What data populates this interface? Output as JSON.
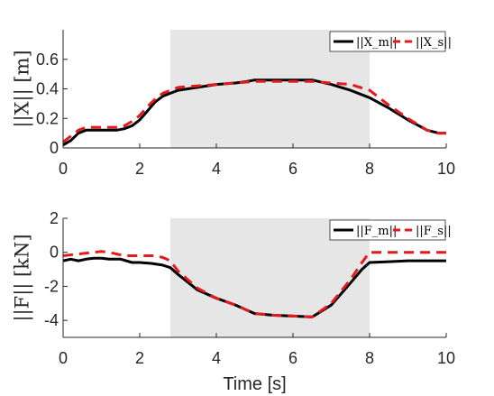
{
  "colors": {
    "master": "#000000",
    "slave": "#e41a1c",
    "shade": "#e6e6e6",
    "axis": "#262626"
  },
  "chart_data": [
    {
      "type": "line",
      "ylabel": "||X|| [m]",
      "xlabel": "",
      "xlim": [
        0,
        10
      ],
      "ylim": [
        0,
        0.8
      ],
      "xticks": [
        "0",
        "2",
        "4",
        "6",
        "8",
        "10"
      ],
      "yticks": [
        "0",
        "0.2",
        "0.4",
        "0.6"
      ],
      "ytick_values": [
        0,
        0.2,
        0.4,
        0.6
      ],
      "xtick_values": [
        0,
        2,
        4,
        6,
        8,
        10
      ],
      "shaded_interval": [
        2.8,
        8.0
      ],
      "legend": "top-right",
      "series": [
        {
          "name": "||X_m||",
          "style": "solid",
          "x": [
            0,
            0.2,
            0.4,
            0.6,
            0.8,
            1.0,
            1.2,
            1.4,
            1.6,
            1.8,
            2.0,
            2.2,
            2.4,
            2.6,
            2.8,
            3.0,
            3.5,
            4.0,
            4.5,
            4.8,
            5.0,
            5.5,
            6.0,
            6.5,
            7.0,
            7.5,
            8.0,
            8.5,
            9.0,
            9.5,
            9.8,
            10.0
          ],
          "y": [
            0.02,
            0.05,
            0.1,
            0.12,
            0.12,
            0.12,
            0.12,
            0.12,
            0.13,
            0.15,
            0.19,
            0.25,
            0.31,
            0.35,
            0.37,
            0.39,
            0.41,
            0.43,
            0.44,
            0.45,
            0.46,
            0.46,
            0.46,
            0.46,
            0.43,
            0.39,
            0.34,
            0.27,
            0.19,
            0.12,
            0.1,
            0.1
          ]
        },
        {
          "name": "||X_s||",
          "style": "dashed",
          "x": [
            0,
            0.2,
            0.4,
            0.6,
            0.8,
            1.0,
            1.2,
            1.4,
            1.6,
            1.8,
            2.0,
            2.2,
            2.4,
            2.6,
            2.8,
            3.0,
            3.5,
            4.0,
            4.5,
            5.0,
            5.5,
            6.0,
            6.5,
            7.0,
            7.5,
            8.0,
            8.5,
            9.0,
            9.5,
            9.8,
            10.0
          ],
          "y": [
            0.04,
            0.08,
            0.12,
            0.14,
            0.14,
            0.14,
            0.14,
            0.14,
            0.15,
            0.18,
            0.22,
            0.28,
            0.33,
            0.37,
            0.39,
            0.41,
            0.42,
            0.43,
            0.44,
            0.45,
            0.45,
            0.45,
            0.45,
            0.44,
            0.43,
            0.39,
            0.29,
            0.2,
            0.12,
            0.1,
            0.1
          ]
        }
      ]
    },
    {
      "type": "line",
      "ylabel": "||F|| [kN]",
      "xlabel": "Time [s]",
      "xlim": [
        0,
        10
      ],
      "ylim": [
        -5,
        2
      ],
      "xticks": [
        "0",
        "2",
        "4",
        "6",
        "8",
        "10"
      ],
      "yticks": [
        "2",
        "0",
        "-2",
        "-4"
      ],
      "ytick_values": [
        2,
        0,
        -2,
        -4
      ],
      "xtick_values": [
        0,
        2,
        4,
        6,
        8,
        10
      ],
      "shaded_interval": [
        2.8,
        8.0
      ],
      "legend": "top-right",
      "series": [
        {
          "name": "||F_m||",
          "style": "solid",
          "x": [
            0,
            0.2,
            0.4,
            0.6,
            0.8,
            1.0,
            1.2,
            1.5,
            1.8,
            2.0,
            2.3,
            2.6,
            2.8,
            3.0,
            3.5,
            4.0,
            4.5,
            5.0,
            5.5,
            6.0,
            6.5,
            7.0,
            7.5,
            7.8,
            8.0,
            8.5,
            9.0,
            9.5,
            10.0
          ],
          "y": [
            -0.5,
            -0.4,
            -0.5,
            -0.4,
            -0.35,
            -0.35,
            -0.4,
            -0.4,
            -0.6,
            -0.6,
            -0.65,
            -0.75,
            -0.9,
            -1.3,
            -2.2,
            -2.7,
            -3.1,
            -3.6,
            -3.7,
            -3.75,
            -3.8,
            -3.1,
            -1.8,
            -1.0,
            -0.6,
            -0.55,
            -0.5,
            -0.5,
            -0.5
          ]
        },
        {
          "name": "||F_s||",
          "style": "dashed",
          "x": [
            0,
            0.4,
            0.8,
            1.0,
            1.2,
            1.4,
            1.6,
            2.0,
            2.4,
            2.6,
            2.8,
            3.0,
            3.5,
            4.0,
            4.5,
            5.0,
            5.5,
            6.0,
            6.5,
            7.0,
            7.5,
            7.8,
            8.0,
            8.5,
            9.0,
            9.5,
            10.0
          ],
          "y": [
            -0.2,
            -0.1,
            0.0,
            0.05,
            0.0,
            -0.1,
            -0.2,
            -0.2,
            -0.2,
            -0.3,
            -0.5,
            -1.1,
            -2.1,
            -2.7,
            -3.1,
            -3.6,
            -3.7,
            -3.75,
            -3.8,
            -3.0,
            -1.6,
            -0.6,
            0.0,
            0.0,
            0.0,
            0.0,
            0.0
          ]
        }
      ]
    }
  ]
}
